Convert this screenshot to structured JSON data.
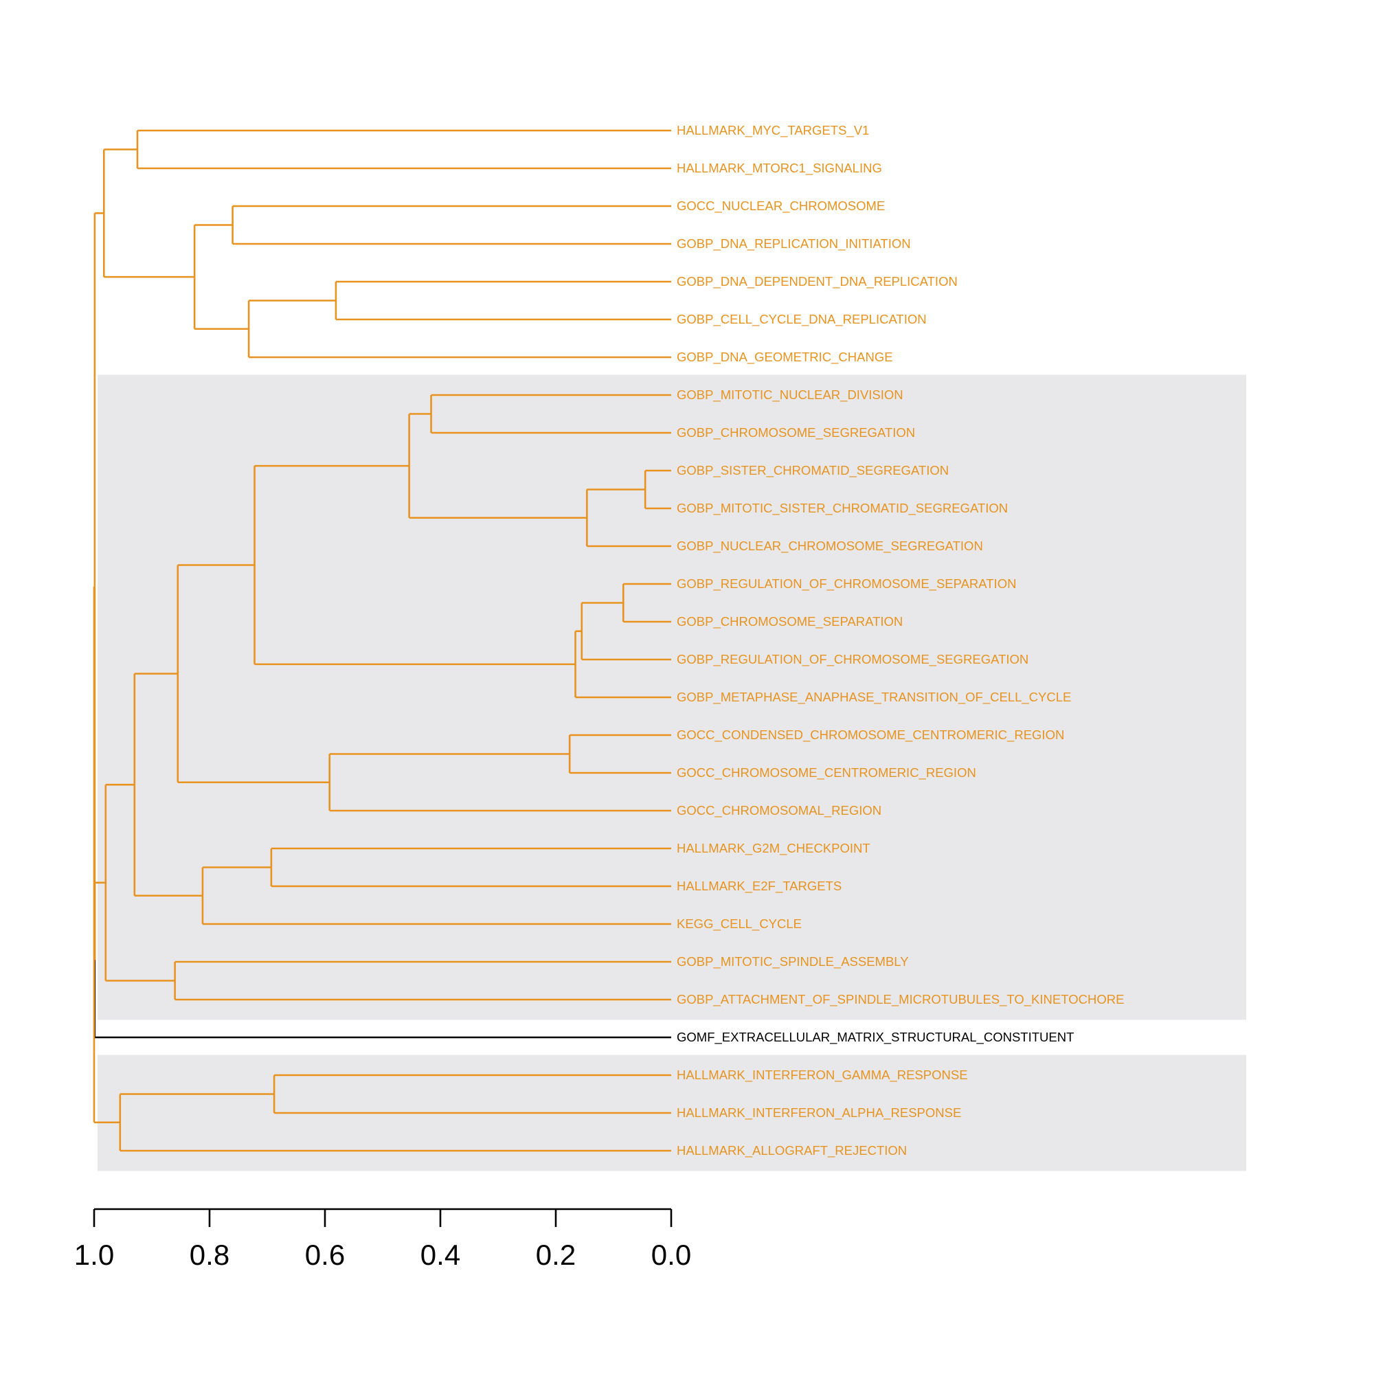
{
  "dendrogram": {
    "orientation": "horizontal",
    "axis": {
      "ticks": [
        "1.0",
        "0.8",
        "0.6",
        "0.4",
        "0.2",
        "0.0"
      ],
      "tick_values": [
        1.0,
        0.8,
        0.6,
        0.4,
        0.2,
        0.0
      ]
    },
    "colors": {
      "branch": "#e8931f",
      "outlier": "#000000",
      "cluster_shade": "#e8e8eb",
      "background": "#ffffff"
    },
    "highlighted_clusters": [
      {
        "first_leaf": 7,
        "last_leaf": 23
      },
      {
        "first_leaf": 25,
        "last_leaf": 27
      }
    ],
    "leaves": [
      "HALLMARK_MYC_TARGETS_V1",
      "HALLMARK_MTORC1_SIGNALING",
      "GOCC_NUCLEAR_CHROMOSOME",
      "GOBP_DNA_REPLICATION_INITIATION",
      "GOBP_DNA_DEPENDENT_DNA_REPLICATION",
      "GOBP_CELL_CYCLE_DNA_REPLICATION",
      "GOBP_DNA_GEOMETRIC_CHANGE",
      "GOBP_MITOTIC_NUCLEAR_DIVISION",
      "GOBP_CHROMOSOME_SEGREGATION",
      "GOBP_SISTER_CHROMATID_SEGREGATION",
      "GOBP_MITOTIC_SISTER_CHROMATID_SEGREGATION",
      "GOBP_NUCLEAR_CHROMOSOME_SEGREGATION",
      "GOBP_REGULATION_OF_CHROMOSOME_SEPARATION",
      "GOBP_CHROMOSOME_SEPARATION",
      "GOBP_REGULATION_OF_CHROMOSOME_SEGREGATION",
      "GOBP_METAPHASE_ANAPHASE_TRANSITION_OF_CELL_CYCLE",
      "GOCC_CONDENSED_CHROMOSOME_CENTROMERIC_REGION",
      "GOCC_CHROMOSOME_CENTROMERIC_REGION",
      "GOCC_CHROMOSOMAL_REGION",
      "HALLMARK_G2M_CHECKPOINT",
      "HALLMARK_E2F_TARGETS",
      "KEGG_CELL_CYCLE",
      "GOBP_MITOTIC_SPINDLE_ASSEMBLY",
      "GOBP_ATTACHMENT_OF_SPINDLE_MICROTUBULES_TO_KINETOCHORE",
      "GOMF_EXTRACELLULAR_MATRIX_STRUCTURAL_CONSTITUENT",
      "HALLMARK_INTERFERON_GAMMA_RESPONSE",
      "HALLMARK_INTERFERON_ALPHA_RESPONSE",
      "HALLMARK_ALLOGRAFT_REJECTION"
    ],
    "leaf_colors": [
      "#e8931f",
      "#e8931f",
      "#e8931f",
      "#e8931f",
      "#e8931f",
      "#e8931f",
      "#e8931f",
      "#e8931f",
      "#e8931f",
      "#e8931f",
      "#e8931f",
      "#e8931f",
      "#e8931f",
      "#e8931f",
      "#e8931f",
      "#e8931f",
      "#e8931f",
      "#e8931f",
      "#e8931f",
      "#e8931f",
      "#e8931f",
      "#e8931f",
      "#e8931f",
      "#e8931f",
      "#000000",
      "#e8931f",
      "#e8931f",
      "#e8931f"
    ],
    "merges": [
      {
        "a": {
          "leaf": 0
        },
        "b": {
          "leaf": 1
        },
        "height": 0.925
      },
      {
        "a": {
          "leaf": 2
        },
        "b": {
          "leaf": 3
        },
        "height": 0.76
      },
      {
        "a": {
          "leaf": 4
        },
        "b": {
          "leaf": 5
        },
        "height": 0.581
      },
      {
        "a": {
          "node": 2
        },
        "b": {
          "leaf": 6
        },
        "height": 0.732
      },
      {
        "a": {
          "node": 1
        },
        "b": {
          "node": 3
        },
        "height": 0.826
      },
      {
        "a": {
          "node": 0
        },
        "b": {
          "node": 4
        },
        "height": 0.983
      },
      {
        "a": {
          "leaf": 7
        },
        "b": {
          "leaf": 8
        },
        "height": 0.416
      },
      {
        "a": {
          "leaf": 9
        },
        "b": {
          "leaf": 10
        },
        "height": 0.045
      },
      {
        "a": {
          "node": 7
        },
        "b": {
          "leaf": 11
        },
        "height": 0.146
      },
      {
        "a": {
          "node": 6
        },
        "b": {
          "node": 8
        },
        "height": 0.454
      },
      {
        "a": {
          "leaf": 12
        },
        "b": {
          "leaf": 13
        },
        "height": 0.083
      },
      {
        "a": {
          "node": 10
        },
        "b": {
          "leaf": 14
        },
        "height": 0.155
      },
      {
        "a": {
          "node": 11
        },
        "b": {
          "leaf": 15
        },
        "height": 0.166
      },
      {
        "a": {
          "node": 9
        },
        "b": {
          "node": 12
        },
        "height": 0.722
      },
      {
        "a": {
          "leaf": 16
        },
        "b": {
          "leaf": 17
        },
        "height": 0.176
      },
      {
        "a": {
          "node": 14
        },
        "b": {
          "leaf": 18
        },
        "height": 0.592
      },
      {
        "a": {
          "node": 13
        },
        "b": {
          "node": 15
        },
        "height": 0.855
      },
      {
        "a": {
          "leaf": 19
        },
        "b": {
          "leaf": 20
        },
        "height": 0.693
      },
      {
        "a": {
          "node": 17
        },
        "b": {
          "leaf": 21
        },
        "height": 0.812
      },
      {
        "a": {
          "node": 16
        },
        "b": {
          "node": 18
        },
        "height": 0.93
      },
      {
        "a": {
          "leaf": 22
        },
        "b": {
          "leaf": 23
        },
        "height": 0.86
      },
      {
        "a": {
          "node": 19
        },
        "b": {
          "node": 20
        },
        "height": 0.98
      },
      {
        "a": {
          "leaf": 25
        },
        "b": {
          "leaf": 26
        },
        "height": 0.688
      },
      {
        "a": {
          "node": 22
        },
        "b": {
          "leaf": 27
        },
        "height": 0.955
      },
      {
        "a": {
          "node": 21
        },
        "b": {
          "leaf": 24
        },
        "height": 0.999,
        "color": "#000000"
      },
      {
        "a": {
          "node": 5
        },
        "b": {
          "node": 24
        },
        "height": 0.999
      },
      {
        "a": {
          "node": 25
        },
        "b": {
          "node": 23
        },
        "height": 1.0
      }
    ]
  }
}
